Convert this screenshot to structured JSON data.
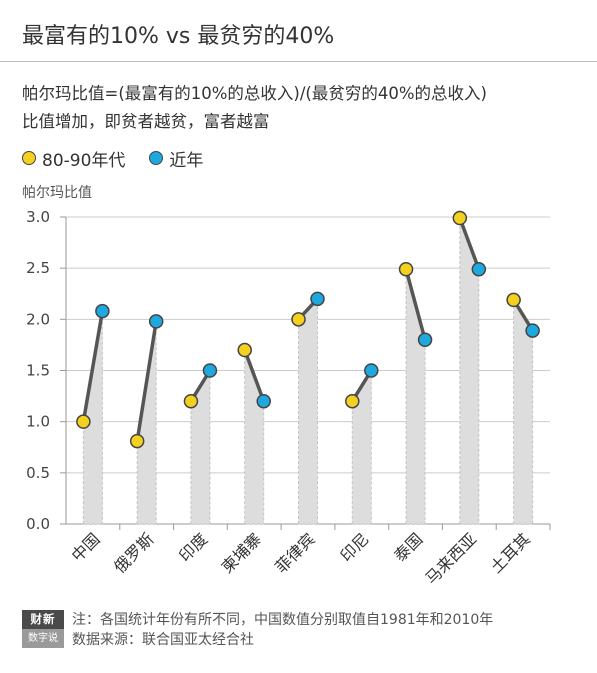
{
  "title": "最富有的10% vs 最贫穷的40%",
  "subtitle_line1": "帕尔玛比值=(最富有的10%的总收入)/(最贫穷的40%的总收入)",
  "subtitle_line2": "比值增加，即贫者越贫，富者越富",
  "legend": [
    {
      "label": "80-90年代",
      "color": "#f5d11f"
    },
    {
      "label": "近年",
      "color": "#1ea8e0"
    }
  ],
  "chart_data": {
    "type": "line",
    "ylabel": "帕尔玛比值",
    "ylim": [
      0,
      3
    ],
    "yticks": [
      "0.0",
      "0.5",
      "1.0",
      "1.5",
      "2.0",
      "2.5",
      "3.0"
    ],
    "categories": [
      "中国",
      "俄罗斯",
      "印度",
      "柬埔寨",
      "菲律宾",
      "印尼",
      "泰国",
      "马来西亚",
      "土耳其"
    ],
    "series": [
      {
        "name": "80-90年代",
        "color": "#f5d11f",
        "values": [
          1.0,
          0.81,
          1.2,
          1.7,
          2.0,
          1.2,
          2.49,
          2.99,
          2.19
        ]
      },
      {
        "name": "近年",
        "color": "#1ea8e0",
        "values": [
          2.08,
          1.98,
          1.5,
          1.2,
          2.2,
          1.5,
          1.8,
          2.49,
          1.89
        ]
      }
    ]
  },
  "logo": {
    "top": "财新",
    "bottom": "数字说"
  },
  "notes": [
    "注：各国统计年份有所不同，中国数值分别取值自1981年和2010年",
    "数据来源：联合国亚太经合社"
  ]
}
